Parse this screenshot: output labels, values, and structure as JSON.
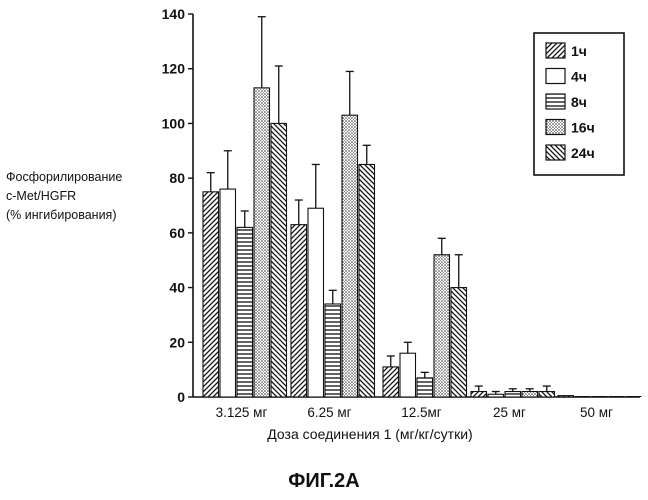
{
  "chart_data": {
    "type": "bar",
    "categories": [
      "3.125 мг",
      "6.25 мг",
      "12.5мг",
      "25 мг",
      "50 мг"
    ],
    "series": [
      {
        "name": "1ч",
        "pattern": "diag-right",
        "values": [
          75,
          63,
          11,
          2,
          0.5
        ],
        "errors": [
          7,
          9,
          4,
          2,
          0
        ]
      },
      {
        "name": "4ч",
        "pattern": "open",
        "values": [
          76,
          69,
          16,
          1,
          0
        ],
        "errors": [
          14,
          16,
          4,
          1,
          0
        ]
      },
      {
        "name": "8ч",
        "pattern": "horizontal",
        "values": [
          62,
          34,
          7,
          2,
          0
        ],
        "errors": [
          6,
          5,
          2,
          1,
          0
        ]
      },
      {
        "name": "16ч",
        "pattern": "dots",
        "values": [
          113,
          103,
          52,
          2,
          0
        ],
        "errors": [
          26,
          16,
          6,
          1,
          0
        ]
      },
      {
        "name": "24ч",
        "pattern": "diag-left",
        "values": [
          100,
          85,
          40,
          2,
          0
        ],
        "errors": [
          21,
          7,
          12,
          2,
          0
        ]
      }
    ],
    "xlabel": "Доза соединения 1 (мг/кг/сутки)",
    "ylabel": [
      "Фосфорилирование",
      "c-Met/HGFR",
      "(% ингибирования)"
    ],
    "ylim": [
      0,
      140
    ],
    "yticks": [
      0,
      20,
      40,
      60,
      80,
      100,
      120,
      140
    ],
    "grid": false,
    "legend": "top-right"
  },
  "figure_label": "ФИГ.2А"
}
